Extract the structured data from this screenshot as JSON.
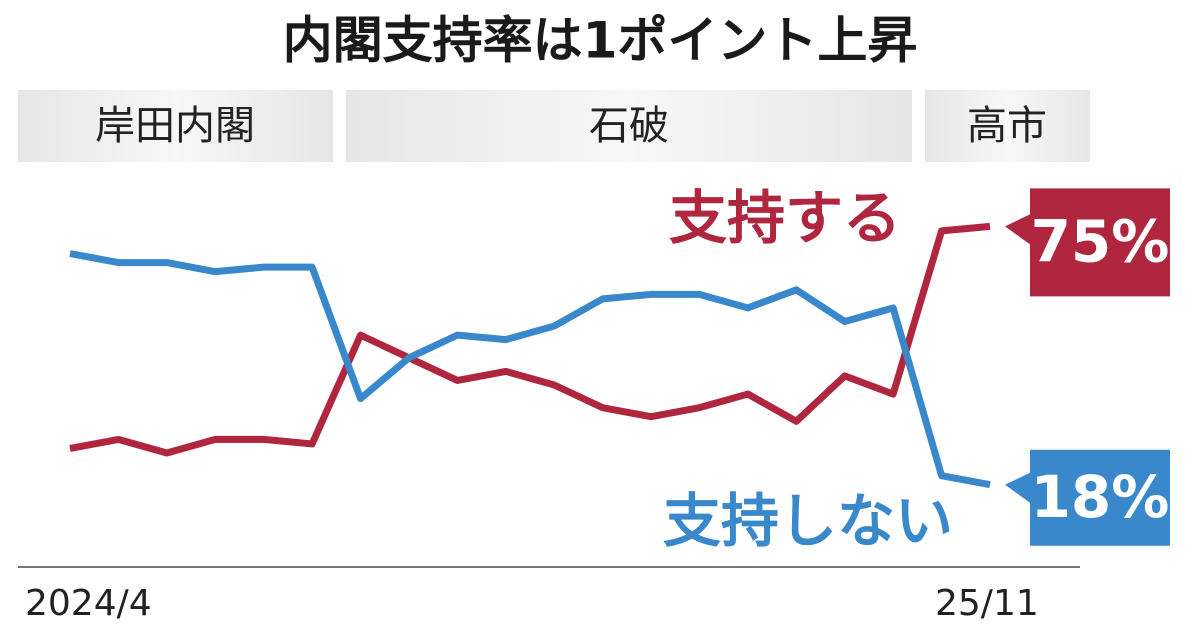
{
  "chart_data": {
    "type": "line",
    "title": "内閣支持率は1ポイント上昇",
    "periods": [
      "岸田内閣",
      "石破",
      "高市"
    ],
    "categories": [
      "2024/4",
      null,
      null,
      null,
      null,
      null,
      null,
      null,
      null,
      null,
      null,
      null,
      null,
      null,
      null,
      null,
      null,
      null,
      null,
      "25/11"
    ],
    "series": [
      {
        "name": "支持する",
        "color": "#b1263f",
        "values": [
          26,
          28,
          25,
          28,
          28,
          27,
          51,
          46,
          41,
          43,
          40,
          35,
          33,
          35,
          38,
          32,
          42,
          38,
          74,
          75
        ],
        "value_labels": [
          null,
          null,
          null,
          null,
          null,
          null,
          null,
          null,
          null,
          null,
          null,
          null,
          null,
          null,
          null,
          null,
          null,
          null,
          null,
          "75%"
        ]
      },
      {
        "name": "支持しない",
        "color": "#3a88cc",
        "values": [
          69,
          67,
          67,
          65,
          66,
          66,
          37,
          46,
          51,
          50,
          53,
          59,
          60,
          60,
          57,
          61,
          54,
          57,
          20,
          18
        ],
        "value_labels": [
          null,
          null,
          null,
          null,
          null,
          null,
          null,
          null,
          null,
          null,
          null,
          null,
          null,
          null,
          null,
          null,
          null,
          null,
          null,
          "18%"
        ]
      }
    ],
    "ylim": [
      10,
      85
    ]
  }
}
